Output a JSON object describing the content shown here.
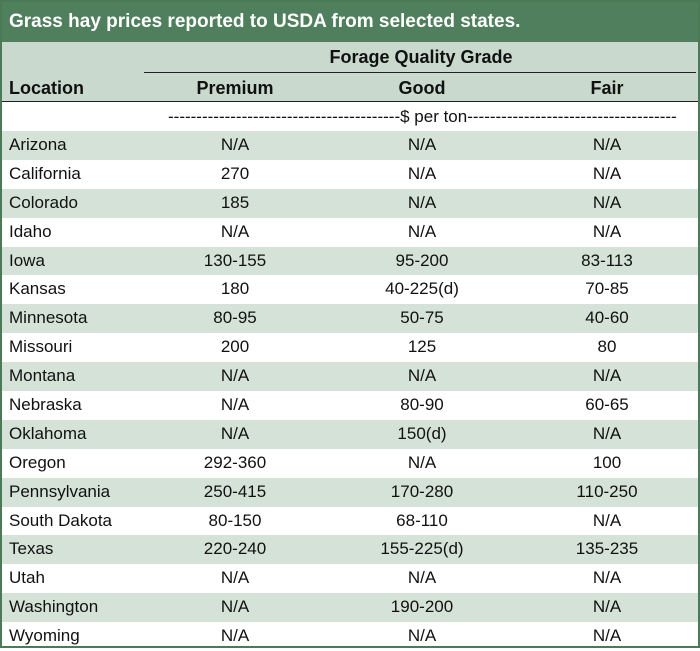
{
  "title": "Grass hay prices reported to USDA from selected states.",
  "header": {
    "group_label": "Forage Quality Grade",
    "location_label": "Location",
    "columns": [
      "Premium",
      "Good",
      "Fair"
    ]
  },
  "units": "-----------------------------------------$ per ton-----------------------------------------",
  "rows": [
    {
      "location": "Arizona",
      "premium": "N/A",
      "good": "N/A",
      "fair": "N/A"
    },
    {
      "location": "California",
      "premium": "270",
      "good": "N/A",
      "fair": "N/A"
    },
    {
      "location": "Colorado",
      "premium": "185",
      "good": "N/A",
      "fair": "N/A"
    },
    {
      "location": "Idaho",
      "premium": "N/A",
      "good": "N/A",
      "fair": "N/A"
    },
    {
      "location": "Iowa",
      "premium": "130-155",
      "good": "95-200",
      "fair": "83-113"
    },
    {
      "location": "Kansas",
      "premium": "180",
      "good": "40-225(d)",
      "fair": "70-85"
    },
    {
      "location": "Minnesota",
      "premium": "80-95",
      "good": "50-75",
      "fair": "40-60"
    },
    {
      "location": "Missouri",
      "premium": "200",
      "good": "125",
      "fair": "80"
    },
    {
      "location": "Montana",
      "premium": "N/A",
      "good": "N/A",
      "fair": "N/A"
    },
    {
      "location": "Nebraska",
      "premium": "N/A",
      "good": "80-90",
      "fair": "60-65"
    },
    {
      "location": "Oklahoma",
      "premium": "N/A",
      "good": "150(d)",
      "fair": "N/A"
    },
    {
      "location": "Oregon",
      "premium": "292-360",
      "good": "N/A",
      "fair": "100"
    },
    {
      "location": "Pennsylvania",
      "premium": "250-415",
      "good": "170-280",
      "fair": "110-250"
    },
    {
      "location": "South Dakota",
      "premium": "80-150",
      "good": "68-110",
      "fair": "N/A"
    },
    {
      "location": "Texas",
      "premium": "220-240",
      "good": "155-225(d)",
      "fair": "135-235"
    },
    {
      "location": "Utah",
      "premium": "N/A",
      "good": "N/A",
      "fair": "N/A"
    },
    {
      "location": "Washington",
      "premium": "N/A",
      "good": "190-200",
      "fair": "N/A"
    },
    {
      "location": "Wyoming",
      "premium": "N/A",
      "good": "N/A",
      "fair": "N/A"
    }
  ],
  "colors": {
    "title_bg": "#4f7f5c",
    "header_bg": "#c9d9cd",
    "row_shade": "#d4e2d7",
    "border": "#4a7a56"
  }
}
